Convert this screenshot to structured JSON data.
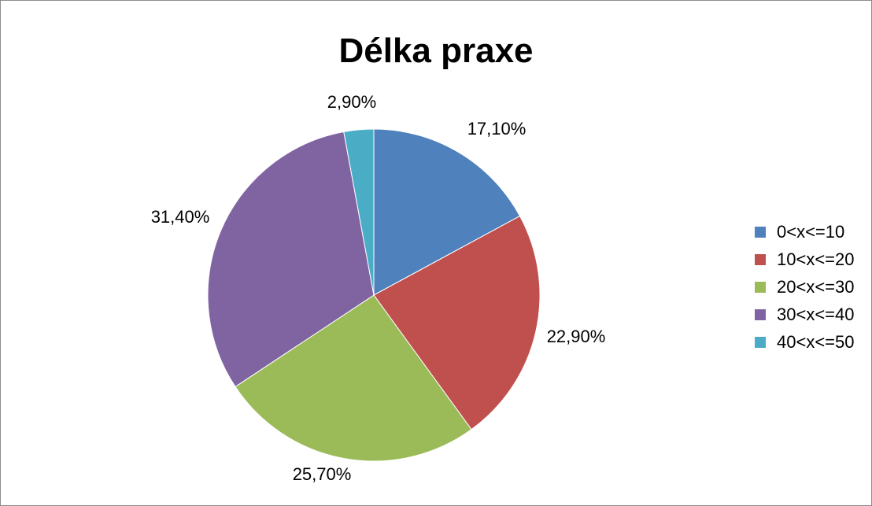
{
  "chart_data": {
    "type": "pie",
    "title": "Délka praxe",
    "legend": "right",
    "categories": [
      "0<x<=10",
      "10<x<=20",
      "20<x<=30",
      "30<x<=40",
      "40<x<=50"
    ],
    "values": [
      17.1,
      22.9,
      25.7,
      31.4,
      2.9
    ],
    "labels": [
      "17,10%",
      "22,90%",
      "25,70%",
      "31,40%",
      "2,90%"
    ],
    "colors": [
      "#4f81bd",
      "#c0504d",
      "#9bbb59",
      "#8064a2",
      "#4bacc6"
    ]
  }
}
